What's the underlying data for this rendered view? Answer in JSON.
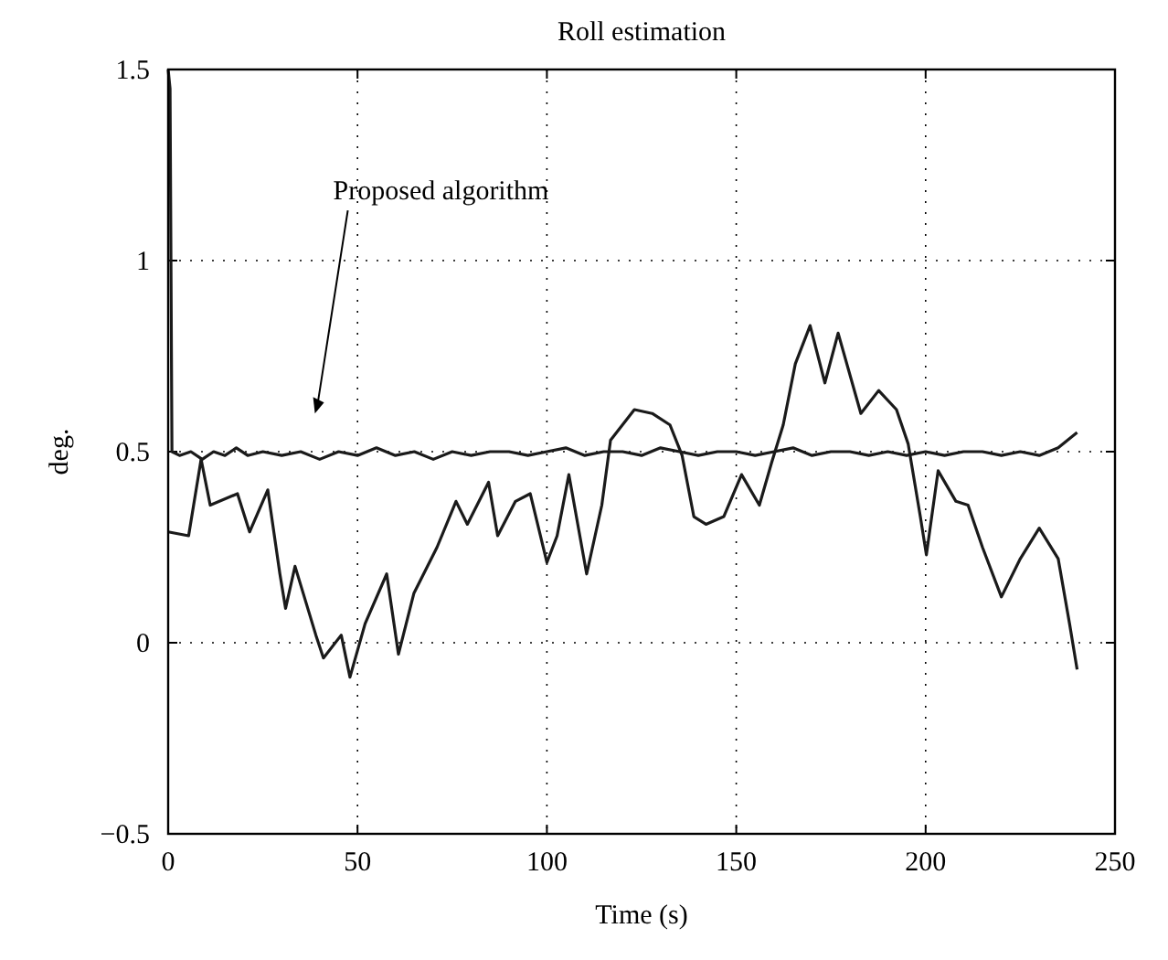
{
  "chart_data": {
    "type": "line",
    "title": "Roll estimation",
    "xlabel": "Time (s)",
    "ylabel": "deg.",
    "xlim": [
      0,
      250
    ],
    "ylim": [
      -0.5,
      1.5
    ],
    "xticks": [
      0,
      50,
      100,
      150,
      200,
      250
    ],
    "yticks": [
      -0.5,
      0,
      0.5,
      1,
      1.5
    ],
    "grid": true,
    "line_style": "solid",
    "series": [
      {
        "color": "#1a1a1a",
        "x": [
          0,
          0.5,
          1,
          3,
          6,
          9,
          12,
          15,
          18,
          21,
          25,
          30,
          35,
          40,
          45,
          50,
          55,
          60,
          65,
          70,
          75,
          80,
          85,
          90,
          95,
          100,
          105,
          110,
          115,
          120,
          125,
          130,
          135,
          140,
          145,
          150,
          155,
          160,
          165,
          170,
          175,
          180,
          185,
          190,
          195,
          200,
          205,
          210,
          215,
          220,
          225,
          230,
          235,
          240
        ],
        "values": [
          1.5,
          1.45,
          0.5,
          0.49,
          0.5,
          0.48,
          0.5,
          0.49,
          0.51,
          0.49,
          0.5,
          0.49,
          0.5,
          0.48,
          0.5,
          0.49,
          0.51,
          0.49,
          0.5,
          0.48,
          0.5,
          0.49,
          0.5,
          0.5,
          0.49,
          0.5,
          0.51,
          0.49,
          0.5,
          0.5,
          0.49,
          0.51,
          0.5,
          0.49,
          0.5,
          0.5,
          0.49,
          0.5,
          0.51,
          0.49,
          0.5,
          0.5,
          0.49,
          0.5,
          0.49,
          0.5,
          0.49,
          0.5,
          0.5,
          0.49,
          0.5,
          0.49,
          0.51,
          0.55
        ]
      },
      {
        "color": "#1a1a1a",
        "x": [
          0,
          5.4,
          8.7,
          11.1,
          18.3,
          21.5,
          26.3,
          29.5,
          31,
          33.5,
          39,
          41,
          45.7,
          48,
          52,
          57.7,
          60.8,
          64.9,
          71,
          76,
          79,
          84.6,
          87,
          91.7,
          95.6,
          100,
          102.7,
          105.8,
          110.5,
          114.5,
          116.8,
          123.1,
          127.8,
          132.5,
          135.7,
          138.8,
          142,
          146.7,
          151.4,
          156.1,
          159.3,
          162.4,
          165.6,
          169.5,
          173.4,
          176.9,
          182.9,
          187.6,
          192.3,
          195.4,
          198.6,
          200.2,
          203.3,
          208,
          211.2,
          215,
          220,
          225,
          230,
          235,
          238,
          240
        ],
        "values": [
          0.29,
          0.28,
          0.48,
          0.36,
          0.39,
          0.29,
          0.4,
          0.18,
          0.09,
          0.2,
          0.02,
          -0.04,
          0.02,
          -0.09,
          0.05,
          0.18,
          -0.03,
          0.13,
          0.25,
          0.37,
          0.31,
          0.42,
          0.28,
          0.37,
          0.39,
          0.21,
          0.28,
          0.44,
          0.18,
          0.36,
          0.53,
          0.61,
          0.6,
          0.57,
          0.49,
          0.33,
          0.31,
          0.33,
          0.44,
          0.36,
          0.47,
          0.57,
          0.73,
          0.83,
          0.68,
          0.81,
          0.6,
          0.66,
          0.61,
          0.52,
          0.33,
          0.23,
          0.45,
          0.37,
          0.36,
          0.25,
          0.12,
          0.22,
          0.3,
          0.22,
          0.05,
          -0.07
        ]
      }
    ],
    "annotations": [
      "Proposed algorithm"
    ]
  }
}
